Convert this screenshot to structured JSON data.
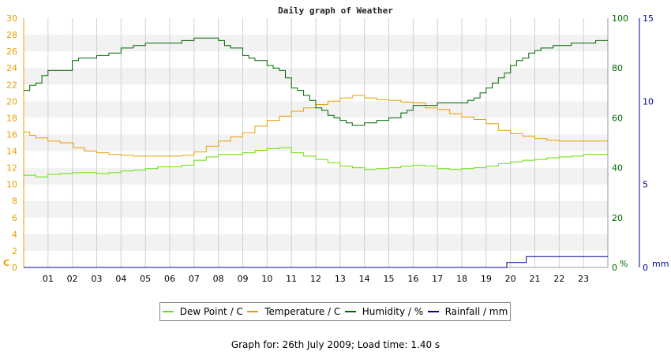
{
  "chart_data": {
    "type": "line",
    "title": "Daily graph of Weather",
    "x_ticks": [
      "01",
      "02",
      "03",
      "04",
      "05",
      "06",
      "07",
      "08",
      "09",
      "10",
      "11",
      "12",
      "13",
      "14",
      "15",
      "16",
      "17",
      "18",
      "19",
      "20",
      "21",
      "22",
      "23"
    ],
    "x_range_hours": [
      0,
      24
    ],
    "axes": {
      "left": {
        "unit": "C",
        "range": [
          0,
          30
        ],
        "ticks": [
          "0",
          "2",
          "4",
          "6",
          "8",
          "10",
          "12",
          "14",
          "16",
          "18",
          "20",
          "22",
          "24",
          "26",
          "28",
          "30"
        ]
      },
      "right": {
        "unit": "%",
        "range": [
          0,
          100
        ],
        "ticks": [
          "0",
          "20",
          "40",
          "60",
          "80",
          "100"
        ]
      },
      "far_right": {
        "unit": "mm",
        "range": [
          0,
          15
        ],
        "ticks": [
          "0",
          "5",
          "10",
          "15"
        ]
      }
    },
    "grid": true,
    "legend_position": "bottom",
    "series": [
      {
        "name": "Dew Point / C",
        "axis": "left",
        "color": "#66e000",
        "x": [
          0,
          0.5,
          1,
          1.5,
          2,
          2.5,
          3,
          3.5,
          4,
          4.5,
          5,
          5.5,
          6,
          6.5,
          7,
          7.5,
          8,
          8.5,
          9,
          9.5,
          10,
          10.5,
          11,
          11.5,
          12,
          12.5,
          13,
          13.5,
          14,
          14.5,
          15,
          15.5,
          16,
          16.5,
          17,
          17.5,
          18,
          18.5,
          19,
          19.5,
          20,
          20.5,
          21,
          21.5,
          22,
          22.5,
          23,
          23.5,
          24
        ],
        "y": [
          11.1,
          10.9,
          11.2,
          11.3,
          11.4,
          11.4,
          11.3,
          11.4,
          11.6,
          11.7,
          11.9,
          12.1,
          12.1,
          12.3,
          12.9,
          13.3,
          13.6,
          13.6,
          13.8,
          14.1,
          14.3,
          14.4,
          13.8,
          13.4,
          13.0,
          12.6,
          12.2,
          12.0,
          11.8,
          11.9,
          12.0,
          12.2,
          12.3,
          12.2,
          11.9,
          11.8,
          11.9,
          12.0,
          12.2,
          12.5,
          12.7,
          12.9,
          13.0,
          13.2,
          13.3,
          13.4,
          13.6,
          13.6,
          13.5
        ]
      },
      {
        "name": "Temperature / C",
        "axis": "left",
        "color": "#e8a000",
        "x": [
          0,
          0.25,
          0.5,
          1,
          1.5,
          2,
          2.05,
          2.5,
          3,
          3.5,
          4,
          4.5,
          5,
          5.5,
          6,
          6.5,
          7,
          7.5,
          8,
          8.5,
          9,
          9.5,
          10,
          10.5,
          11,
          11.5,
          12,
          12.5,
          13,
          13.5,
          14,
          14.5,
          15,
          15.5,
          16,
          16.5,
          17,
          17.5,
          18,
          18.5,
          19,
          19.5,
          20,
          20.5,
          21,
          21.5,
          22,
          22.5,
          23,
          23.5,
          24
        ],
        "y": [
          16.3,
          15.9,
          15.6,
          15.2,
          15.0,
          15.0,
          14.4,
          14.0,
          13.8,
          13.6,
          13.5,
          13.4,
          13.4,
          13.4,
          13.4,
          13.5,
          13.9,
          14.6,
          15.2,
          15.7,
          16.2,
          17.0,
          17.7,
          18.2,
          18.8,
          19.2,
          19.6,
          20.0,
          20.4,
          20.7,
          20.4,
          20.2,
          20.1,
          19.9,
          19.8,
          19.2,
          19.0,
          18.5,
          18.1,
          17.8,
          17.3,
          16.5,
          16.1,
          15.8,
          15.5,
          15.3,
          15.2,
          15.2,
          15.2,
          15.2,
          15.1
        ]
      },
      {
        "name": "Humidity / %",
        "axis": "right",
        "color": "#006600",
        "x": [
          0,
          0.25,
          0.5,
          0.75,
          1,
          1.25,
          1.5,
          1.75,
          2,
          2.25,
          2.5,
          3,
          3.5,
          4,
          4.5,
          5,
          5.5,
          6,
          6.5,
          7,
          7.25,
          7.5,
          7.75,
          8,
          8.25,
          8.5,
          9,
          9.25,
          9.5,
          10,
          10.25,
          10.5,
          10.75,
          11,
          11.25,
          11.5,
          11.75,
          12,
          12.25,
          12.5,
          12.75,
          13,
          13.25,
          13.5,
          13.75,
          14,
          14.25,
          14.5,
          15,
          15.5,
          15.75,
          16,
          16.5,
          17,
          17.5,
          18,
          18.25,
          18.5,
          18.75,
          19,
          19.25,
          19.5,
          19.75,
          20,
          20.25,
          20.5,
          20.75,
          21,
          21.25,
          21.5,
          21.75,
          22,
          22.25,
          22.5,
          22.75,
          23,
          23.5,
          24
        ],
        "y": [
          71,
          73,
          74,
          77,
          79,
          79,
          79,
          79,
          83,
          84,
          84,
          85,
          86,
          88,
          89,
          90,
          90,
          90,
          91,
          92,
          92,
          92,
          92,
          91,
          89,
          88,
          85,
          84,
          83,
          81,
          80,
          79,
          76,
          72,
          71,
          69,
          67,
          64,
          63,
          61,
          60,
          59,
          58,
          57,
          57,
          58,
          58,
          59,
          60,
          62,
          63,
          65,
          65,
          66,
          66,
          66,
          67,
          68,
          70,
          72,
          74,
          76,
          78,
          81,
          83,
          84,
          86,
          87,
          88,
          88,
          89,
          89,
          89,
          90,
          90,
          90,
          91,
          91
        ]
      },
      {
        "name": "Rainfall / mm",
        "axis": "far_right",
        "color": "#000099",
        "x": [
          0,
          19.8,
          19.85,
          20.6,
          20.65,
          24
        ],
        "y": [
          0,
          0,
          0.3,
          0.3,
          0.65,
          0.65
        ]
      }
    ]
  },
  "footer": {
    "prefix": "Graph for:",
    "date": "26th July 2009",
    "load_label": "Load time:",
    "load_time": "1.40 s"
  }
}
